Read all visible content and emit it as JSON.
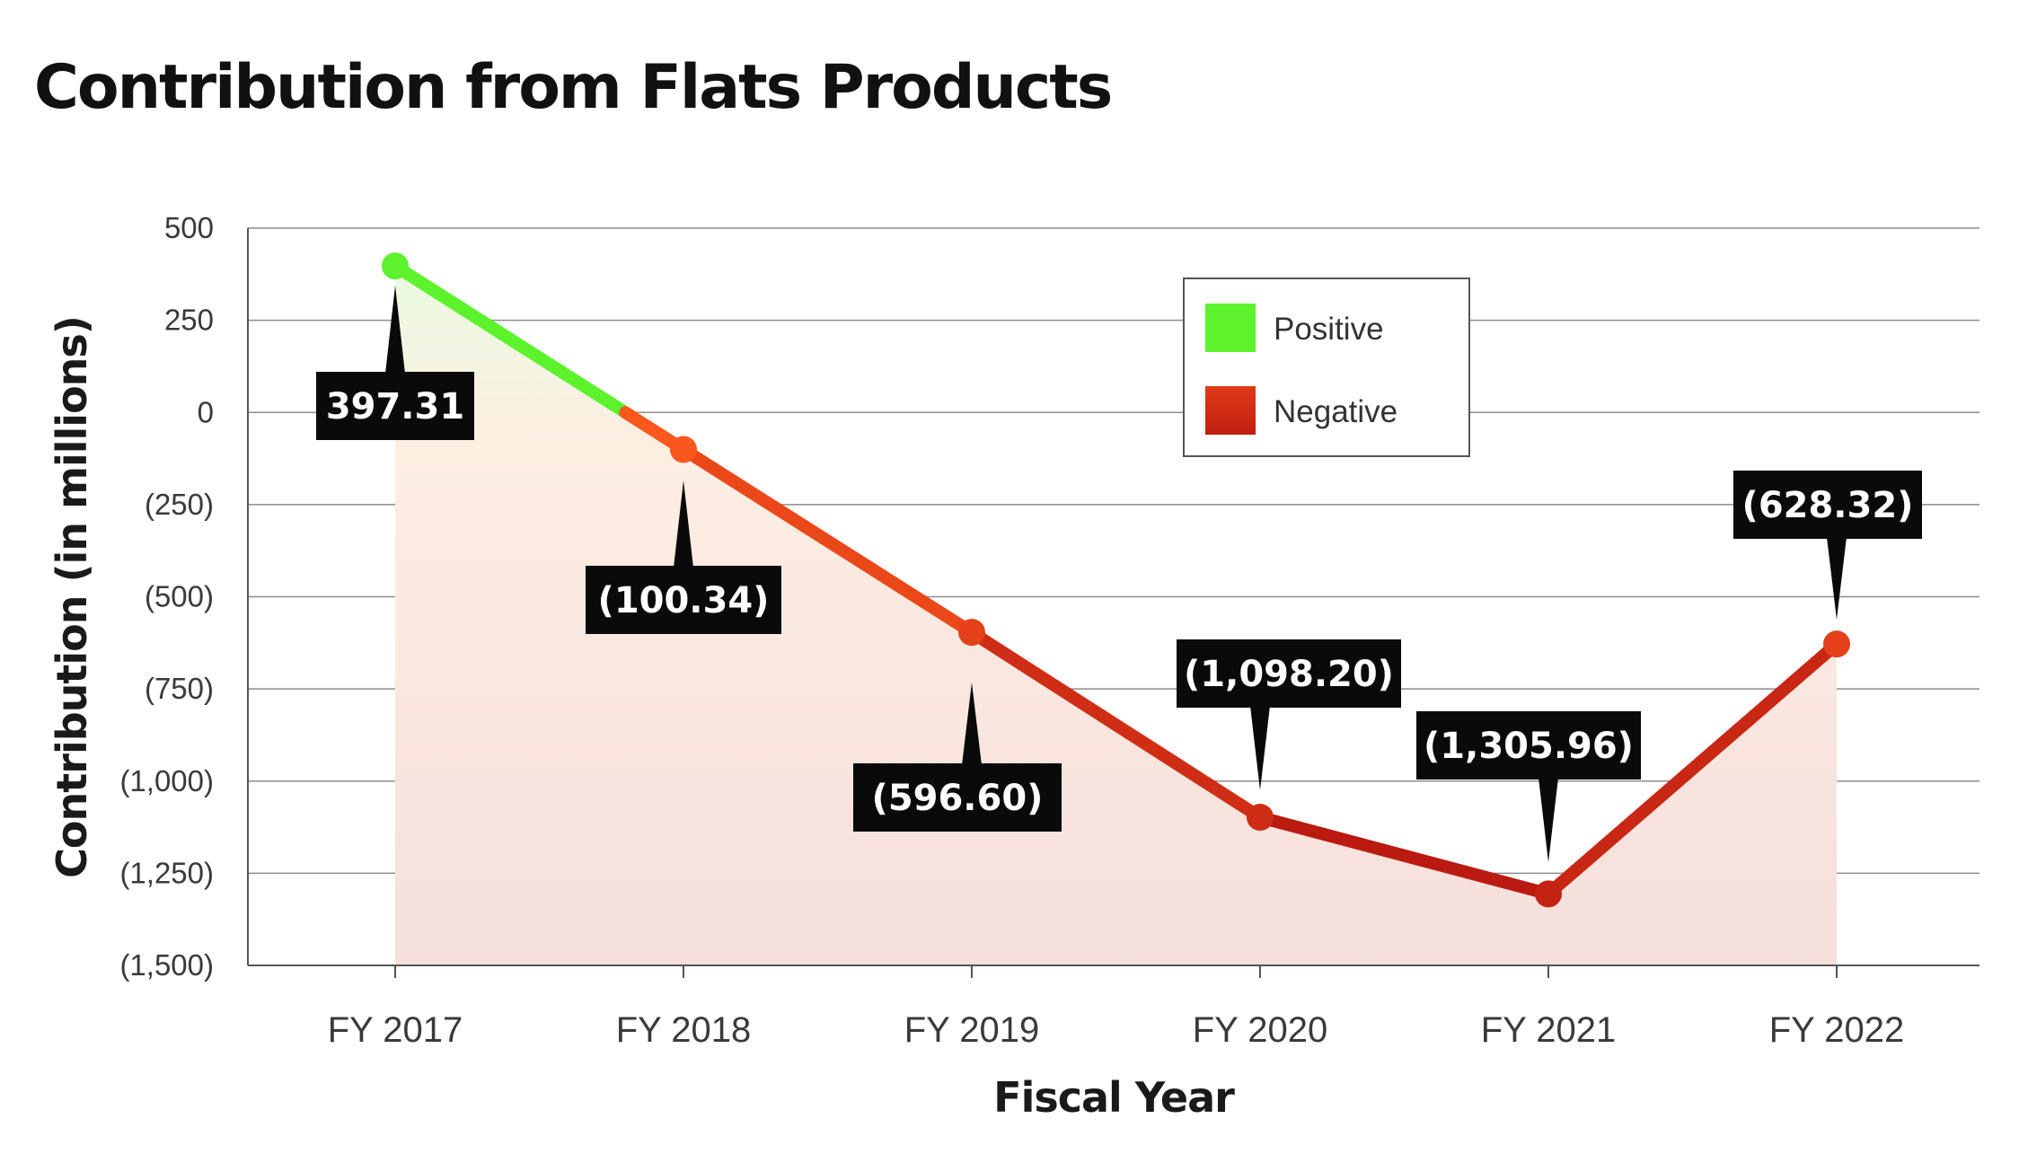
{
  "chart_data": {
    "type": "line",
    "title": "Contribution from Flats Products",
    "xlabel": "Fiscal Year",
    "ylabel": "Contribution (in millions)",
    "categories": [
      "FY 2017",
      "FY 2018",
      "FY 2019",
      "FY 2020",
      "FY 2021",
      "FY 2022"
    ],
    "values": [
      397.31,
      -100.34,
      -596.6,
      -1098.2,
      -1305.96,
      -628.32
    ],
    "data_labels": [
      "397.31",
      "(100.34)",
      "(596.60)",
      "(1,098.20)",
      "(1,305.96)",
      "(628.32)"
    ],
    "ylim": [
      -1500,
      500
    ],
    "yticks": [
      500,
      250,
      0,
      -250,
      -500,
      -750,
      -1000,
      -1250,
      -1500
    ],
    "ytick_labels": [
      "500",
      "250",
      "0",
      "(250)",
      "(500)",
      "(750)",
      "(1,000)",
      "(1,250)",
      "(1,500)"
    ],
    "grid": true,
    "legend": {
      "placement": "top-center",
      "entries": [
        {
          "label": "Positive",
          "color": "#5cf22c"
        },
        {
          "label": "Negative",
          "color": "#d42a10"
        }
      ]
    },
    "colors": {
      "positive": "#5cf22c",
      "negative_light": "#ff5a1e",
      "negative_dark": "#b51510",
      "callout_bg": "#0a0a0a"
    }
  }
}
